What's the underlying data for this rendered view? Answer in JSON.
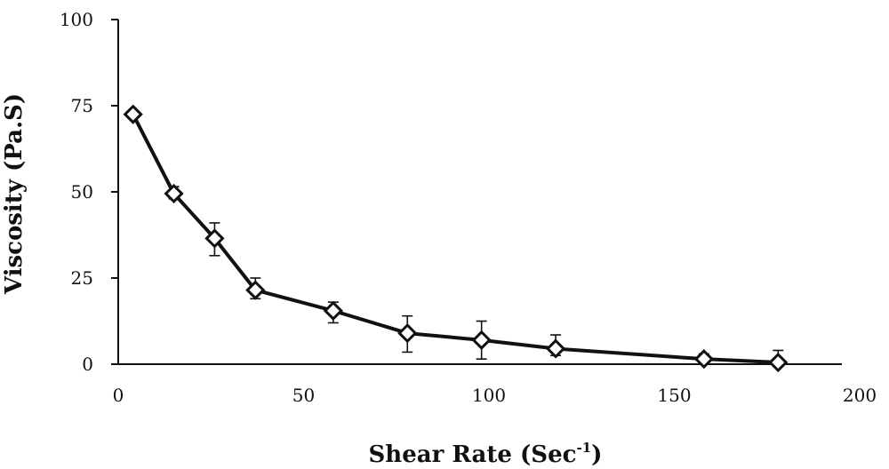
{
  "chart_data": {
    "type": "line",
    "xlabel": "Shear Rate (Sec",
    "xlabel_sup": "-1",
    "xlabel_close": ")",
    "ylabel": "Viscosity (Pa.S)",
    "xlim": [
      0,
      200
    ],
    "ylim": [
      0,
      100
    ],
    "xticks": [
      0,
      50,
      100,
      150,
      200
    ],
    "yticks": [
      0,
      25,
      50,
      75,
      100
    ],
    "xtick_labels": [
      "0",
      "50",
      "100",
      "150",
      "200"
    ],
    "ytick_labels": [
      "0",
      "25",
      "50",
      "75",
      "100"
    ],
    "grid": false,
    "marker": "open-diamond",
    "series": [
      {
        "x": [
          4,
          15,
          26,
          37,
          58,
          78,
          98,
          118,
          158,
          178
        ],
        "y": [
          72.5,
          49.5,
          36.5,
          21.5,
          15.5,
          9,
          7,
          4.5,
          1.5,
          0.5
        ],
        "err_low": [
          1,
          1.5,
          5,
          2.5,
          3.5,
          5.5,
          5.5,
          2,
          1.5,
          1
        ],
        "err_high": [
          1,
          2,
          4.5,
          3.5,
          2.5,
          5,
          5.5,
          4,
          1.5,
          3.5
        ]
      }
    ],
    "color": "#111111"
  }
}
